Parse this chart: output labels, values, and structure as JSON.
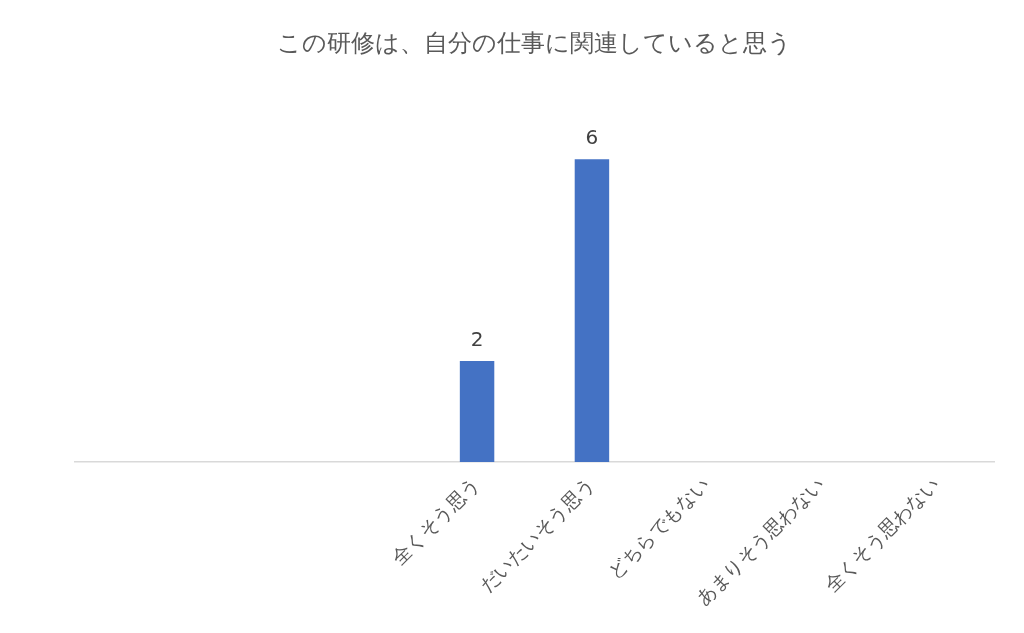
{
  "chart_data": {
    "type": "bar",
    "title": "この研修は、自分の仕事に関連していると思う",
    "categories": [
      null,
      null,
      null,
      "全くそう思う",
      "だいたいそう思う",
      "どちらでもない",
      "あまりそう思わない",
      "全くそう思わない"
    ],
    "values": [
      null,
      null,
      null,
      2,
      6,
      null,
      null,
      null
    ],
    "color": "#4472c4",
    "grid": false,
    "legend": false,
    "data_labels": true
  }
}
